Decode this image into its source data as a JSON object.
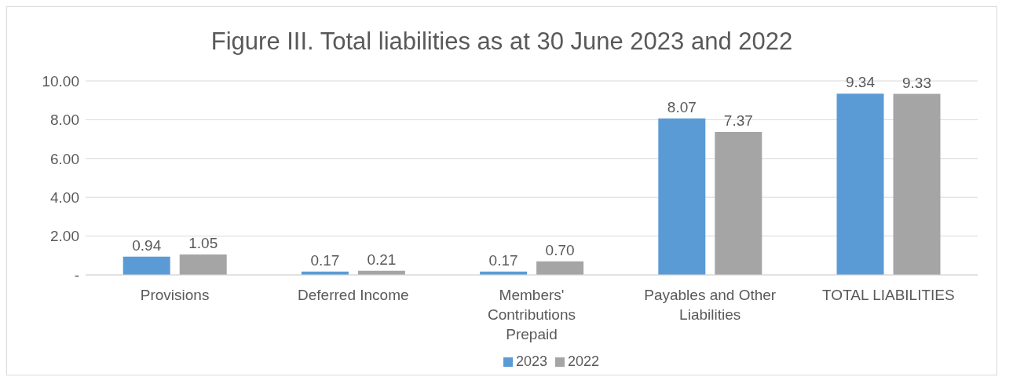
{
  "chart_data": {
    "type": "bar",
    "title": "Figure III. Total liabilities as at 30 June 2023 and 2022",
    "categories": [
      "Provisions",
      "Deferred Income",
      "Members' Contributions Prepaid",
      "Payables and Other Liabilities",
      "TOTAL LIABILITIES"
    ],
    "series": [
      {
        "name": "2023",
        "color": "#5b9bd5",
        "values": [
          0.94,
          0.17,
          0.17,
          8.07,
          9.34
        ],
        "value_labels": [
          "0.94",
          "0.17",
          "0.17",
          "8.07",
          "9.34"
        ]
      },
      {
        "name": "2022",
        "color": "#a5a5a5",
        "values": [
          1.05,
          0.21,
          0.7,
          7.37,
          9.33
        ],
        "value_labels": [
          "1.05",
          "0.21",
          "0.70",
          "7.37",
          "9.33"
        ]
      }
    ],
    "ylim": [
      0,
      10
    ],
    "yticks": [
      {
        "value": 0,
        "label": "-"
      },
      {
        "value": 2,
        "label": "2.00"
      },
      {
        "value": 4,
        "label": "4.00"
      },
      {
        "value": 6,
        "label": "6.00"
      },
      {
        "value": 8,
        "label": "8.00"
      },
      {
        "value": 10,
        "label": "10.00"
      }
    ],
    "grid": "y",
    "legend": "bottom"
  }
}
